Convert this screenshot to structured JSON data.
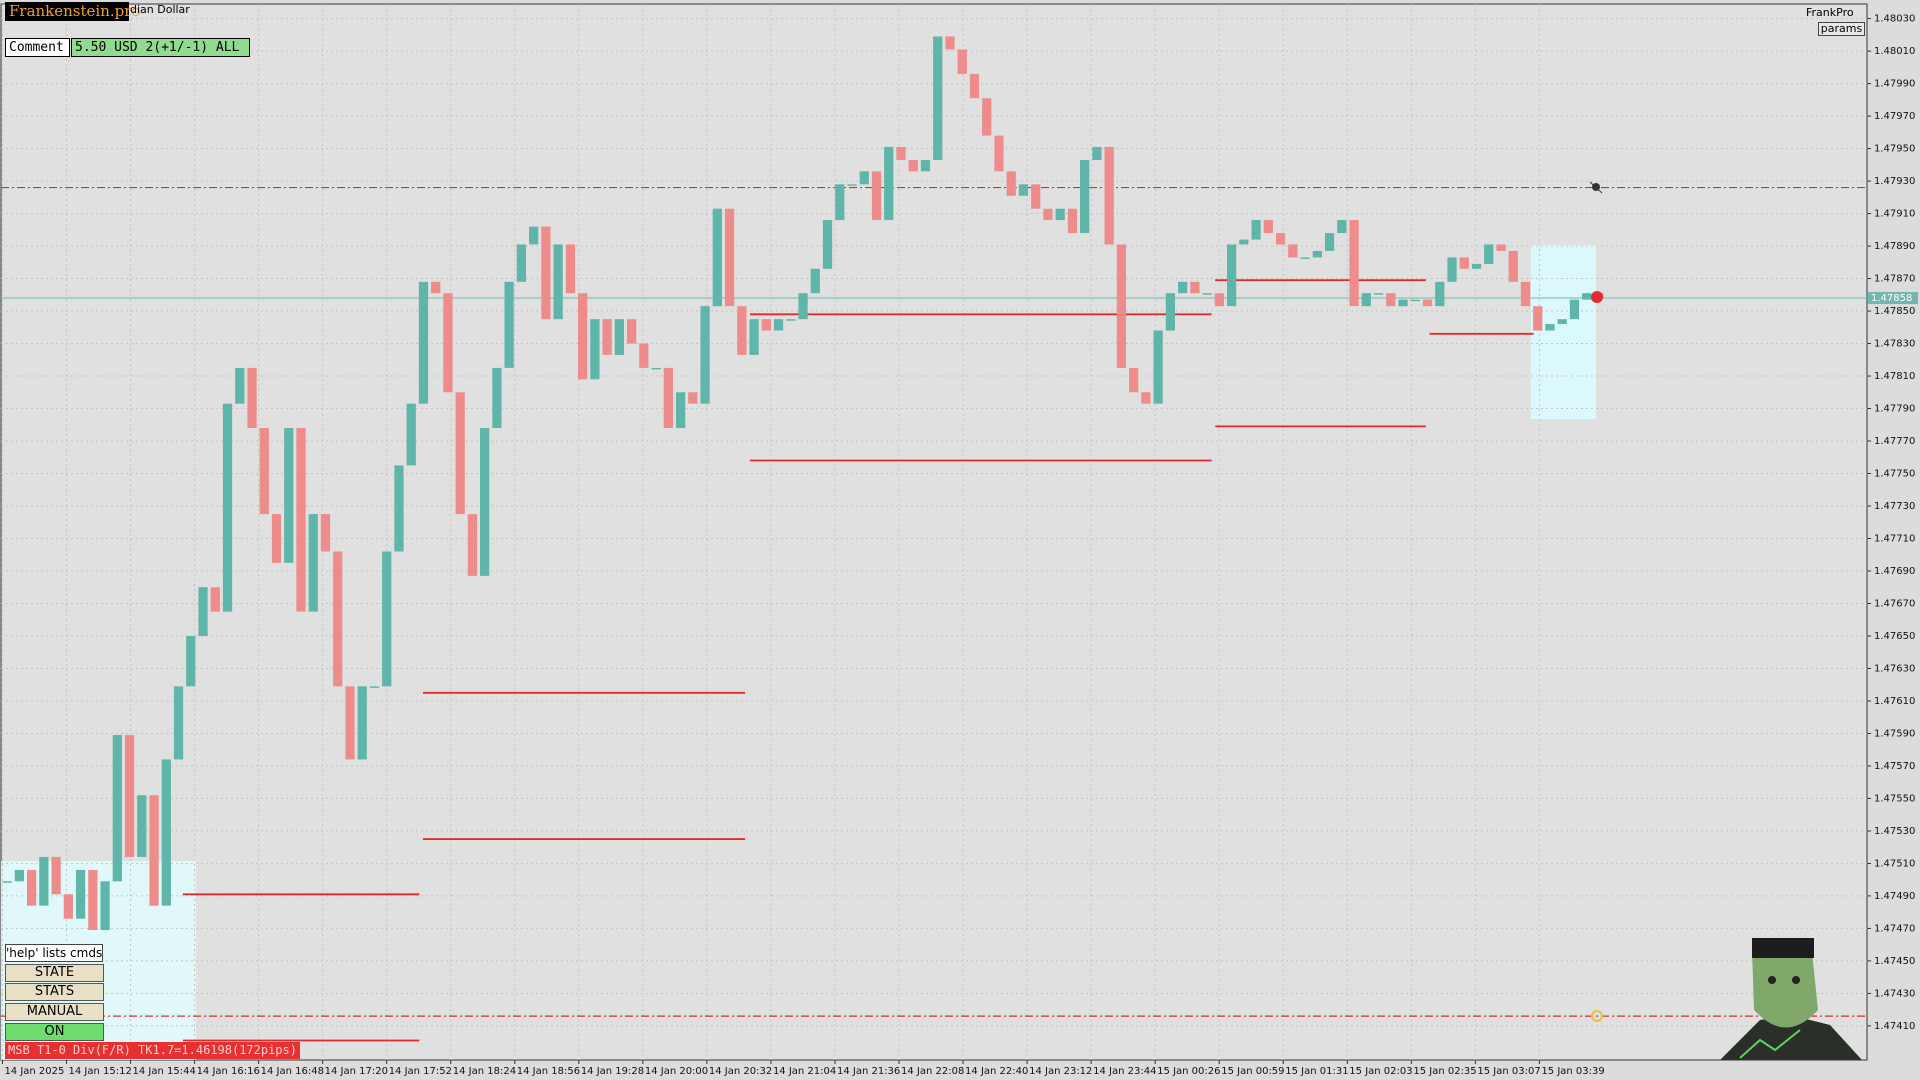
{
  "header": {
    "logo": "Frankenstein.pro",
    "symbol": "dian Dollar",
    "comment_button": "Comment",
    "comment_text": "5.50 USD 2(+1/-1) ALL",
    "brand": "FrankPro",
    "params_button": "params"
  },
  "panel": {
    "hint": "'help' lists cmds",
    "buttons": [
      "STATE",
      "STATS",
      "MANUAL",
      "ON"
    ],
    "status": "MSB T1-0 Div(F/R) TK1.7=1.46198(172pips)"
  },
  "chart_data": {
    "type": "candlestick",
    "time_labels": [
      "14 Jan 2025",
      "14 Jan 15:12",
      "14 Jan 15:44",
      "14 Jan 16:16",
      "14 Jan 16:48",
      "14 Jan 17:20",
      "14 Jan 17:52",
      "14 Jan 18:24",
      "14 Jan 18:56",
      "14 Jan 19:28",
      "14 Jan 20:00",
      "14 Jan 20:32",
      "14 Jan 21:04",
      "14 Jan 21:36",
      "14 Jan 22:08",
      "14 Jan 22:40",
      "14 Jan 23:12",
      "14 Jan 23:44",
      "15 Jan 00:26",
      "15 Jan 00:59",
      "15 Jan 01:31",
      "15 Jan 02:03",
      "15 Jan 02:35",
      "15 Jan 03:07",
      "15 Jan 03:39"
    ],
    "closes": [
      1.47499,
      1.47506,
      1.47484,
      1.47514,
      1.47491,
      1.47476,
      1.47506,
      1.47469,
      1.47499,
      1.47589,
      1.47514,
      1.47552,
      1.47484,
      1.47574,
      1.47619,
      1.4765,
      1.4768,
      1.47665,
      1.47793,
      1.47815,
      1.47778,
      1.47725,
      1.47695,
      1.47778,
      1.47665,
      1.47725,
      1.47702,
      1.47619,
      1.47574,
      1.47619,
      1.47619,
      1.47702,
      1.47755,
      1.47793,
      1.47868,
      1.47861,
      1.478,
      1.47725,
      1.47687,
      1.47778,
      1.47815,
      1.47868,
      1.47891,
      1.47902,
      1.47845,
      1.47891,
      1.47861,
      1.47808,
      1.47845,
      1.47823,
      1.47845,
      1.4783,
      1.47815,
      1.47815,
      1.47778,
      1.478,
      1.47793,
      1.47853,
      1.47913,
      1.47853,
      1.47823,
      1.47845,
      1.47838,
      1.47845,
      1.47845,
      1.47861,
      1.47876,
      1.47906,
      1.47928,
      1.47928,
      1.47936,
      1.47906,
      1.47951,
      1.47943,
      1.47936,
      1.47943,
      1.48019,
      1.48011,
      1.47996,
      1.47981,
      1.47958,
      1.47936,
      1.47921,
      1.47928,
      1.47913,
      1.47906,
      1.47913,
      1.47898,
      1.47943,
      1.47951,
      1.47891,
      1.47815,
      1.478,
      1.47793,
      1.47838,
      1.47861,
      1.47868,
      1.47861,
      1.47861,
      1.47853,
      1.47891,
      1.47894,
      1.47906,
      1.47898,
      1.47891,
      1.47883,
      1.47883,
      1.47887,
      1.47898,
      1.47906,
      1.47853,
      1.47861,
      1.47861,
      1.47853,
      1.47857,
      1.47857,
      1.47853,
      1.47868,
      1.47883,
      1.47876,
      1.47879,
      1.47891,
      1.47887,
      1.47868,
      1.47853,
      1.47838,
      1.47842,
      1.47845,
      1.47857,
      1.47861,
      1.47858
    ],
    "up_color": "#5fb5aa",
    "down_color": "#ee8c8c",
    "ylim": [
      1.47389,
      1.48039
    ],
    "yticks": [
      {
        "value": 1.4803,
        "label": "1.48030"
      },
      {
        "value": 1.4801,
        "label": "1.48010"
      },
      {
        "value": 1.4799,
        "label": "1.47990"
      },
      {
        "value": 1.4797,
        "label": "1.47970"
      },
      {
        "value": 1.4795,
        "label": "1.47950"
      },
      {
        "value": 1.4793,
        "label": "1.47930"
      },
      {
        "value": 1.4791,
        "label": "1.47910"
      },
      {
        "value": 1.4789,
        "label": "1.47890"
      },
      {
        "value": 1.4787,
        "label": "1.47870"
      },
      {
        "value": 1.4785,
        "label": "1.47850"
      },
      {
        "value": 1.4783,
        "label": "1.47830"
      },
      {
        "value": 1.4781,
        "label": "1.47810"
      },
      {
        "value": 1.4779,
        "label": "1.47790"
      },
      {
        "value": 1.4777,
        "label": "1.47770"
      },
      {
        "value": 1.4775,
        "label": "1.47750"
      },
      {
        "value": 1.4773,
        "label": "1.47730"
      },
      {
        "value": 1.4771,
        "label": "1.47710"
      },
      {
        "value": 1.4769,
        "label": "1.47690"
      },
      {
        "value": 1.4767,
        "label": "1.47670"
      },
      {
        "value": 1.4765,
        "label": "1.47650"
      },
      {
        "value": 1.4763,
        "label": "1.47630"
      },
      {
        "value": 1.4761,
        "label": "1.47610"
      },
      {
        "value": 1.4759,
        "label": "1.47590"
      },
      {
        "value": 1.4757,
        "label": "1.47570"
      },
      {
        "value": 1.4755,
        "label": "1.47550"
      },
      {
        "value": 1.4753,
        "label": "1.47530"
      },
      {
        "value": 1.4751,
        "label": "1.47510"
      },
      {
        "value": 1.4749,
        "label": "1.47490"
      },
      {
        "value": 1.4747,
        "label": "1.47470"
      },
      {
        "value": 1.4745,
        "label": "1.47450"
      },
      {
        "value": 1.4743,
        "label": "1.47430"
      },
      {
        "value": 1.4741,
        "label": "1.47410"
      }
    ],
    "grid": true,
    "current_price": 1.47858,
    "current_color": "#6fb7b0",
    "level_color": "#e02c2c",
    "levels": [
      {
        "value": 1.47926,
        "style": "dashdot"
      },
      {
        "value": 1.47416,
        "style": "dashdot"
      },
      {
        "value": 1.47491,
        "from": 14.7,
        "to": 34
      },
      {
        "value": 1.47401,
        "from": 14.7,
        "to": 34
      },
      {
        "value": 1.47615,
        "from": 34.3,
        "to": 60.6
      },
      {
        "value": 1.47525,
        "from": 34.3,
        "to": 60.6
      },
      {
        "value": 1.47848,
        "from": 61,
        "to": 98.7
      },
      {
        "value": 1.47758,
        "from": 61,
        "to": 98.7
      },
      {
        "value": 1.47869,
        "from": 99,
        "to": 116.2
      },
      {
        "value": 1.47779,
        "from": 99,
        "to": 116.2
      },
      {
        "value": 1.47836,
        "from": 116.5,
        "to": 125
      }
    ]
  }
}
